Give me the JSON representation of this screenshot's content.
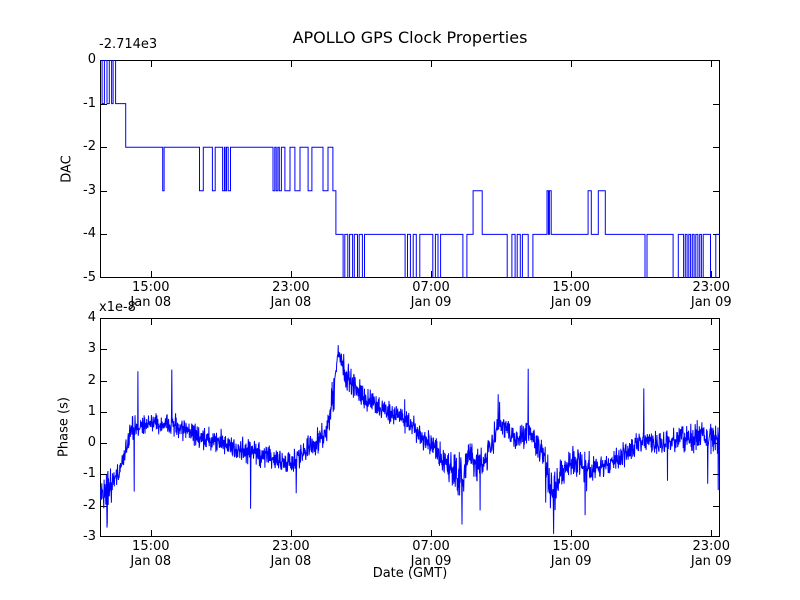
{
  "figure": {
    "title": "APOLLO GPS Clock Properties",
    "xlabel": "Date (GMT)",
    "background": "#ffffff",
    "line_color": "#0000ff",
    "axis_color": "#000000",
    "text_color": "#000000"
  },
  "chart_data": [
    {
      "type": "line",
      "subplot": "dac",
      "ylabel": "DAC",
      "offset_text": "-2.714e3",
      "draw_style": "steps-post",
      "x_unit": "hours since Jan 08 00:00 GMT",
      "x_range_hours": [
        12.1,
        47.5
      ],
      "ylim": [
        -5,
        0
      ],
      "y_ticks": [
        0,
        -1,
        -2,
        -3,
        -4,
        -5
      ],
      "x_ticks": [
        {
          "hours": 15,
          "time": "15:00",
          "date": "Jan 08"
        },
        {
          "hours": 23,
          "time": "23:00",
          "date": "Jan 08"
        },
        {
          "hours": 31,
          "time": "07:00",
          "date": "Jan 09"
        },
        {
          "hours": 39,
          "time": "15:00",
          "date": "Jan 09"
        },
        {
          "hours": 47,
          "time": "23:00",
          "date": "Jan 09"
        }
      ],
      "steps": [
        [
          12.1,
          0
        ],
        [
          12.22,
          -1
        ],
        [
          12.35,
          0
        ],
        [
          12.5,
          -1
        ],
        [
          12.63,
          0
        ],
        [
          12.76,
          -1
        ],
        [
          12.85,
          0
        ],
        [
          12.99,
          -1
        ],
        [
          13.57,
          -2
        ],
        [
          15.68,
          -3
        ],
        [
          15.76,
          -2
        ],
        [
          17.78,
          -3
        ],
        [
          18.0,
          -2
        ],
        [
          18.52,
          -3
        ],
        [
          18.68,
          -2
        ],
        [
          19.1,
          -3
        ],
        [
          19.2,
          -2
        ],
        [
          19.24,
          -3
        ],
        [
          19.32,
          -2
        ],
        [
          19.42,
          -3
        ],
        [
          19.55,
          -2
        ],
        [
          21.98,
          -3
        ],
        [
          22.08,
          -2
        ],
        [
          22.16,
          -3
        ],
        [
          22.26,
          -2
        ],
        [
          22.34,
          -3
        ],
        [
          22.46,
          -2
        ],
        [
          22.66,
          -3
        ],
        [
          22.95,
          -2
        ],
        [
          23.23,
          -3
        ],
        [
          23.52,
          -2
        ],
        [
          23.98,
          -3
        ],
        [
          24.2,
          -2
        ],
        [
          24.83,
          -3
        ],
        [
          25.12,
          -2
        ],
        [
          25.4,
          -3
        ],
        [
          25.57,
          -4
        ],
        [
          25.98,
          -5
        ],
        [
          26.08,
          -4
        ],
        [
          26.25,
          -5
        ],
        [
          26.35,
          -4
        ],
        [
          26.52,
          -5
        ],
        [
          26.62,
          -4
        ],
        [
          26.8,
          -5
        ],
        [
          26.9,
          -4
        ],
        [
          27.08,
          -5
        ],
        [
          27.2,
          -4
        ],
        [
          29.52,
          -5
        ],
        [
          29.66,
          -4
        ],
        [
          29.82,
          -5
        ],
        [
          29.98,
          -4
        ],
        [
          30.16,
          -5
        ],
        [
          30.36,
          -4
        ],
        [
          31.1,
          -5
        ],
        [
          31.25,
          -4
        ],
        [
          31.4,
          -5
        ],
        [
          31.55,
          -4
        ],
        [
          32.82,
          -5
        ],
        [
          33.05,
          -4
        ],
        [
          33.4,
          -3
        ],
        [
          33.92,
          -4
        ],
        [
          35.35,
          -5
        ],
        [
          35.62,
          -4
        ],
        [
          35.8,
          -5
        ],
        [
          35.92,
          -4
        ],
        [
          36.1,
          -5
        ],
        [
          36.22,
          -4
        ],
        [
          36.55,
          -5
        ],
        [
          36.82,
          -4
        ],
        [
          37.62,
          -3
        ],
        [
          37.7,
          -4
        ],
        [
          37.76,
          -3
        ],
        [
          37.86,
          -4
        ],
        [
          39.97,
          -3
        ],
        [
          40.15,
          -4
        ],
        [
          40.55,
          -3
        ],
        [
          40.95,
          -4
        ],
        [
          43.22,
          -5
        ],
        [
          43.33,
          -4
        ],
        [
          44.82,
          -5
        ],
        [
          45.12,
          -4
        ],
        [
          45.42,
          -5
        ],
        [
          45.52,
          -4
        ],
        [
          45.62,
          -5
        ],
        [
          45.72,
          -4
        ],
        [
          45.82,
          -5
        ],
        [
          45.92,
          -4
        ],
        [
          46.02,
          -5
        ],
        [
          46.12,
          -4
        ],
        [
          46.24,
          -5
        ],
        [
          46.34,
          -4
        ],
        [
          46.44,
          -5
        ],
        [
          46.54,
          -4
        ],
        [
          46.96,
          -5
        ],
        [
          47.26,
          -4
        ]
      ]
    },
    {
      "type": "line",
      "subplot": "phase",
      "ylabel": "Phase (s)",
      "offset_text": "x1e-8",
      "unit_multiplier": "1e-8",
      "x_unit": "hours since Jan 08 00:00 GMT",
      "x_range_hours": [
        12.1,
        47.5
      ],
      "ylim": [
        -3,
        4
      ],
      "y_ticks": [
        4,
        3,
        2,
        1,
        0,
        -1,
        -2,
        -3
      ],
      "x_ticks": [
        {
          "hours": 15,
          "time": "15:00",
          "date": "Jan 08"
        },
        {
          "hours": 23,
          "time": "23:00",
          "date": "Jan 08"
        },
        {
          "hours": 31,
          "time": "07:00",
          "date": "Jan 09"
        },
        {
          "hours": 39,
          "time": "15:00",
          "date": "Jan 09"
        },
        {
          "hours": 47,
          "time": "23:00",
          "date": "Jan 09"
        }
      ],
      "samples_per_hour": 60,
      "profile_t_mean_amp": [
        [
          12.1,
          -1.55,
          0.3
        ],
        [
          12.4,
          -1.8,
          0.55
        ],
        [
          12.55,
          -1.55,
          0.75
        ],
        [
          12.9,
          -1.15,
          0.3
        ],
        [
          13.25,
          -0.9,
          0.25
        ],
        [
          13.6,
          -0.2,
          0.3
        ],
        [
          13.9,
          0.5,
          0.35
        ],
        [
          14.4,
          0.6,
          0.3
        ],
        [
          15.2,
          0.65,
          0.25
        ],
        [
          16.2,
          0.6,
          0.3
        ],
        [
          17.0,
          0.4,
          0.3
        ],
        [
          18.0,
          0.15,
          0.3
        ],
        [
          19.0,
          0.1,
          0.28
        ],
        [
          19.9,
          -0.2,
          0.35
        ],
        [
          21.0,
          -0.3,
          0.3
        ],
        [
          22.0,
          -0.55,
          0.3
        ],
        [
          23.0,
          -0.65,
          0.28
        ],
        [
          23.7,
          -0.3,
          0.32
        ],
        [
          24.4,
          -0.05,
          0.35
        ],
        [
          25.0,
          0.45,
          0.4
        ],
        [
          25.45,
          1.6,
          0.45
        ],
        [
          25.7,
          2.9,
          0.2
        ],
        [
          26.1,
          2.25,
          0.35
        ],
        [
          26.7,
          1.75,
          0.35
        ],
        [
          27.4,
          1.35,
          0.3
        ],
        [
          28.3,
          1.05,
          0.28
        ],
        [
          29.1,
          0.85,
          0.28
        ],
        [
          29.9,
          0.55,
          0.3
        ],
        [
          30.6,
          0.15,
          0.3
        ],
        [
          31.2,
          -0.15,
          0.32
        ],
        [
          31.8,
          -0.55,
          0.4
        ],
        [
          32.3,
          -0.95,
          0.45
        ],
        [
          32.85,
          -1.05,
          0.55
        ],
        [
          33.15,
          -0.35,
          0.3
        ],
        [
          33.6,
          -0.75,
          0.5
        ],
        [
          34.2,
          -0.45,
          0.35
        ],
        [
          34.65,
          0.25,
          0.4
        ],
        [
          34.95,
          0.85,
          0.4
        ],
        [
          35.4,
          0.35,
          0.3
        ],
        [
          35.9,
          0.1,
          0.28
        ],
        [
          36.45,
          0.35,
          0.35
        ],
        [
          36.9,
          0.2,
          0.4
        ],
        [
          37.4,
          -0.3,
          0.45
        ],
        [
          37.95,
          -1.6,
          0.6
        ],
        [
          38.4,
          -1.1,
          0.45
        ],
        [
          38.9,
          -0.6,
          0.35
        ],
        [
          39.4,
          -0.55,
          0.4
        ],
        [
          39.85,
          -0.9,
          0.5
        ],
        [
          40.4,
          -0.85,
          0.32
        ],
        [
          41.1,
          -0.7,
          0.3
        ],
        [
          41.9,
          -0.45,
          0.32
        ],
        [
          42.6,
          -0.15,
          0.3
        ],
        [
          43.2,
          0.1,
          0.3
        ],
        [
          44.0,
          0.0,
          0.32
        ],
        [
          44.8,
          0.1,
          0.32
        ],
        [
          45.6,
          0.15,
          0.33
        ],
        [
          46.3,
          0.2,
          0.38
        ],
        [
          47.0,
          0.15,
          0.42
        ],
        [
          47.5,
          0.25,
          0.5
        ]
      ],
      "spikes_t_value": [
        [
          12.5,
          -2.7
        ],
        [
          14.05,
          -1.55
        ],
        [
          14.27,
          2.3
        ],
        [
          16.2,
          2.35
        ],
        [
          20.7,
          -2.1
        ],
        [
          23.3,
          -1.6
        ],
        [
          25.7,
          3.13
        ],
        [
          29.5,
          1.4
        ],
        [
          32.77,
          -2.6
        ],
        [
          33.8,
          -2.15
        ],
        [
          34.84,
          1.56
        ],
        [
          36.55,
          2.38
        ],
        [
          37.55,
          -1.9
        ],
        [
          38.0,
          -2.9
        ],
        [
          39.8,
          -2.3
        ],
        [
          43.15,
          1.75
        ],
        [
          44.5,
          -1.2
        ],
        [
          46.8,
          -1.3
        ],
        [
          47.4,
          -1.5
        ]
      ]
    }
  ]
}
